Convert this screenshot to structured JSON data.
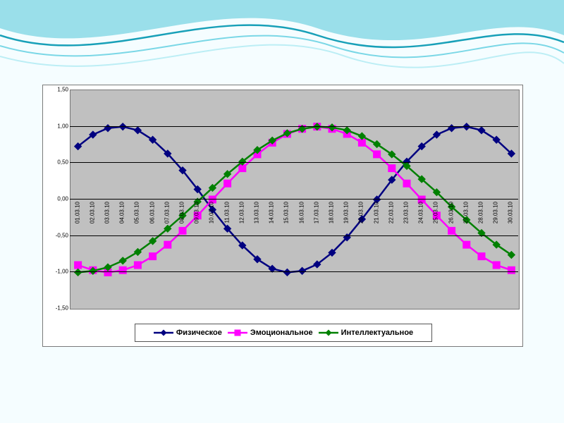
{
  "chart": {
    "type": "line",
    "background_color": "#c0c0c0",
    "grid_color": "#000000",
    "line_width": 2.5,
    "marker_size": 5,
    "ylim": [
      -1.5,
      1.5
    ],
    "ytick_step": 0.5,
    "ytick_labels": [
      "-1,50",
      "-1,00",
      "-0,50",
      "0,00",
      "0,50",
      "1,00",
      "1,50"
    ],
    "ytick_values": [
      -1.5,
      -1.0,
      -0.5,
      0.0,
      0.5,
      1.0,
      1.5
    ],
    "tick_fontsize": 8,
    "categories": [
      "01.03.10",
      "02.03.10",
      "03.03.10",
      "04.03.10",
      "05.03.10",
      "06.03.10",
      "07.03.10",
      "08.03.10",
      "09.03.10",
      "10.03.10",
      "11.03.10",
      "12.03.10",
      "13.03.10",
      "14.03.10",
      "15.03.10",
      "16.03.10",
      "17.03.10",
      "18.03.10",
      "19.03.10",
      "20.03.10",
      "21.03.10",
      "22.03.10",
      "23.03.10",
      "24.03.10",
      "25.03.10",
      "26.03.10",
      "27.03.10",
      "28.03.10",
      "29.03.10",
      "30.03.10"
    ],
    "series": [
      {
        "name": "Физическое",
        "color": "#000080",
        "marker": "diamond",
        "values": [
          0.73,
          0.89,
          0.98,
          1.0,
          0.95,
          0.82,
          0.63,
          0.4,
          0.14,
          -0.14,
          -0.4,
          -0.63,
          -0.82,
          -0.95,
          -1.0,
          -0.98,
          -0.89,
          -0.73,
          -0.52,
          -0.27,
          0.0,
          0.27,
          0.52,
          0.73,
          0.89,
          0.98,
          1.0,
          0.95,
          0.82,
          0.63
        ]
      },
      {
        "name": "Эмоциональное",
        "color": "#ff00ff",
        "marker": "square",
        "values": [
          -0.9,
          -0.97,
          -1.0,
          -0.97,
          -0.9,
          -0.78,
          -0.62,
          -0.43,
          -0.22,
          0.0,
          0.22,
          0.43,
          0.62,
          0.78,
          0.9,
          0.97,
          1.0,
          0.97,
          0.9,
          0.78,
          0.62,
          0.43,
          0.22,
          0.0,
          -0.22,
          -0.43,
          -0.62,
          -0.78,
          -0.9,
          -0.97
        ]
      },
      {
        "name": "Интеллектуальное",
        "color": "#008000",
        "marker": "diamond",
        "values": [
          -1.0,
          -0.98,
          -0.93,
          -0.84,
          -0.72,
          -0.57,
          -0.4,
          -0.22,
          -0.03,
          0.16,
          0.35,
          0.52,
          0.68,
          0.81,
          0.91,
          0.97,
          1.0,
          0.99,
          0.95,
          0.87,
          0.76,
          0.62,
          0.46,
          0.28,
          0.1,
          -0.1,
          -0.28,
          -0.46,
          -0.62,
          -0.76
        ]
      }
    ]
  },
  "legend": [
    "Физическое",
    "Эмоциональное",
    "Интеллектуальное"
  ]
}
